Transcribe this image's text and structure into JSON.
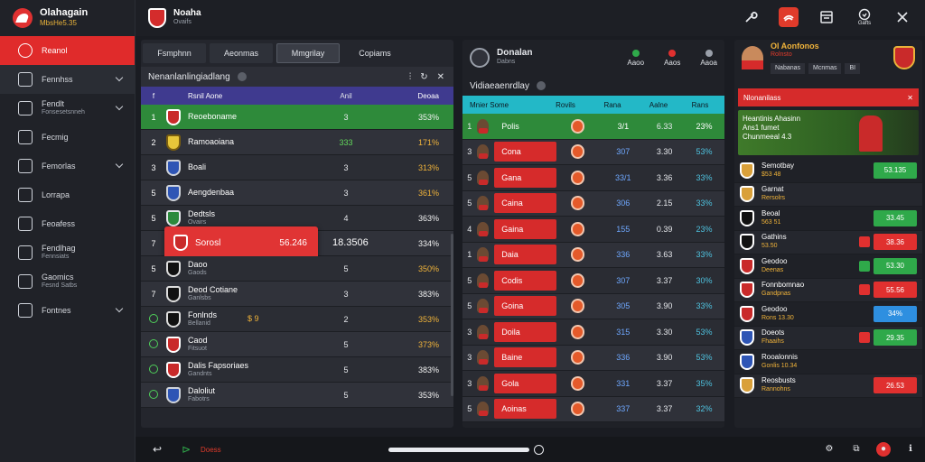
{
  "brand": {
    "title": "Olahagain",
    "subtitle": "MbsHe5.35"
  },
  "sidebar": {
    "items": [
      {
        "label": "Reanol",
        "sub": "",
        "active": true
      },
      {
        "label": "Fennhss",
        "sub": "",
        "caret": true,
        "alt": true
      },
      {
        "label": "Fendlt",
        "sub": "Fonsesetsnneh",
        "caret": true
      },
      {
        "label": "Fecmig",
        "sub": ""
      },
      {
        "label": "Femorlas",
        "sub": "",
        "caret": true
      },
      {
        "label": "Lorrapa",
        "sub": ""
      },
      {
        "label": "Feoafess",
        "sub": ""
      },
      {
        "label": "Fendlhag",
        "sub": "Fennsiats"
      },
      {
        "label": "Gaomics",
        "sub": "Fesnd Satbs"
      },
      {
        "label": "Fontnes",
        "sub": "",
        "caret": true
      }
    ]
  },
  "topbar": {
    "club_name": "Noaha",
    "club_sub": "Ovaifs",
    "actions": [
      "wrench-icon",
      "flag-icon",
      "window-icon",
      "clock-icon",
      "close-icon"
    ],
    "action_sub": "Gafts"
  },
  "left_panel": {
    "tabs": [
      "Fsmphnn",
      "Aeonmas",
      "Mmgrilay",
      "Copiams"
    ],
    "title": "Nenanlanlingiadlang",
    "columns": {
      "rank": "f",
      "name": "Rsnil Aone",
      "val": "Anil",
      "pct": "Deoaa"
    },
    "rows": [
      {
        "rank": "1",
        "name": "Reoeboname",
        "sub": "",
        "val": "3",
        "pct": "353%",
        "crest": "red",
        "style": "green",
        "pct_white": true
      },
      {
        "rank": "2",
        "name": "Ramoaoiana",
        "sub": "",
        "val": "333",
        "pct": "171%",
        "crest": "yel",
        "val_green": true
      },
      {
        "rank": "3",
        "name": "Boali",
        "sub": "",
        "val": "3",
        "pct": "313%",
        "crest": "blue"
      },
      {
        "rank": "5",
        "name": "Aengdenbaa",
        "sub": "",
        "val": "3",
        "pct": "361%",
        "crest": "blue"
      },
      {
        "rank": "5",
        "name": "Dedtsls",
        "sub": "Ovairs",
        "val": "4",
        "pct": "363%",
        "crest": "grn",
        "pct_white": true
      },
      {
        "rank": "7",
        "name": "",
        "sub": "",
        "val": "",
        "pct": "334%",
        "crest": "red",
        "pct_white": true,
        "highlight": {
          "name": "Sorosl",
          "value": "56.246"
        },
        "big_value": "18.3506"
      },
      {
        "rank": "5",
        "name": "Daoo",
        "sub": "Gaods",
        "val": "5",
        "pct": "350%",
        "crest": "dark"
      },
      {
        "rank": "7",
        "name": "Deod Cotiane",
        "sub": "Ganlsbs",
        "val": "3",
        "pct": "383%",
        "crest": "dark",
        "pct_white": true
      },
      {
        "rank": "",
        "name": "Fonlnds",
        "sub": "Bellanid",
        "val": "2",
        "pct": "353%",
        "crest": "dark",
        "extra": "$ 9"
      },
      {
        "rank": "",
        "name": "Caod",
        "sub": "Fitsuot",
        "val": "5",
        "pct": "373%",
        "crest": "red"
      },
      {
        "rank": "",
        "name": "Dalis Fapsoriaes",
        "sub": "Gandnts",
        "val": "5",
        "pct": "383%",
        "crest": "red",
        "pct_white": true
      },
      {
        "rank": "",
        "name": "Daloliut",
        "sub": "Fabotrs",
        "val": "5",
        "pct": "353%",
        "crest": "blue",
        "pct_white": true
      }
    ]
  },
  "mid_panel": {
    "title": "Donalan",
    "subtitle": "Dabns",
    "stats": [
      {
        "label": "Aaoo"
      },
      {
        "label": "Aaos"
      },
      {
        "label": "Aaoa"
      }
    ],
    "section": "Vidiaeaenrdlay",
    "columns": [
      "Mnier Some",
      "Rovils",
      "Rana",
      "Aalne",
      "Rans"
    ],
    "rows": [
      {
        "rank": "1",
        "name": "Polis",
        "val": "3/1",
        "val2": "6.33",
        "pct": "23%",
        "style": "green"
      },
      {
        "rank": "3",
        "name": "Cona",
        "val": "307",
        "val2": "3.30",
        "pct": "53%"
      },
      {
        "rank": "5",
        "name": "Gana",
        "val": "33/1",
        "val2": "3.36",
        "pct": "33%"
      },
      {
        "rank": "5",
        "name": "Caina",
        "val": "306",
        "val2": "2.15",
        "pct": "33%"
      },
      {
        "rank": "4",
        "name": "Gaina",
        "val": "155",
        "val2": "0.39",
        "pct": "23%"
      },
      {
        "rank": "1",
        "name": "Daia",
        "val": "336",
        "val2": "3.63",
        "pct": "33%"
      },
      {
        "rank": "5",
        "name": "Codis",
        "val": "307",
        "val2": "3.37",
        "pct": "30%"
      },
      {
        "rank": "5",
        "name": "Goina",
        "val": "305",
        "val2": "3.90",
        "pct": "33%"
      },
      {
        "rank": "3",
        "name": "Doila",
        "val": "315",
        "val2": "3.30",
        "pct": "53%"
      },
      {
        "rank": "3",
        "name": "Baine",
        "val": "336",
        "val2": "3.90",
        "pct": "53%"
      },
      {
        "rank": "3",
        "name": "Gola",
        "val": "331",
        "val2": "3.37",
        "pct": "35%"
      },
      {
        "rank": "5",
        "name": "Aoinas",
        "val": "337",
        "val2": "3.37",
        "pct": "32%"
      }
    ]
  },
  "right_panel": {
    "title": "Ol Aonfonos",
    "subtitle": "Rolnsto",
    "stats": [
      "Nabanas",
      "Mcnmas",
      "BI"
    ],
    "bar_label": "Nlonanilass",
    "hero_text": [
      "Heantinis Ahasinn",
      "Ans1 fumet",
      "Chunmeeal 4.3"
    ],
    "rows": [
      {
        "name": "Semotbay",
        "sub": "$53 48",
        "pill": "53.135",
        "pill_color": "g",
        "crest": ""
      },
      {
        "name": "Garnat",
        "sub": "Rersolrs",
        "pill": "",
        "pill_color": "none",
        "crest": ""
      },
      {
        "name": "Beoal",
        "sub": "563 51",
        "pill": "33.45",
        "pill_color": "g",
        "crest": "dark"
      },
      {
        "name": "Gathins",
        "sub": "53.50",
        "pill": "38.36",
        "pill_color": "r",
        "crest": "dark",
        "mini": "#e0302f"
      },
      {
        "name": "Geodoo",
        "sub": "Deenas",
        "pill": "53.30",
        "pill_color": "g",
        "crest": "red",
        "mini": "#2fa94a"
      },
      {
        "name": "Fonnbomnao",
        "sub": "Gandpnas",
        "pill": "55.56",
        "pill_color": "r",
        "crest": "red",
        "mini": "#e0302f"
      },
      {
        "name": "Geodoo",
        "sub": "Rons 13.30",
        "pill": "34%",
        "pill_color": "b",
        "crest": "red"
      },
      {
        "name": "Doeots",
        "sub": "Fhaaihs",
        "pill": "29.35",
        "pill_color": "g",
        "crest": "blue",
        "mini": "#e0302f"
      },
      {
        "name": "Rooalonnis",
        "sub": "Gonlis 10.34",
        "pill": "",
        "pill_color": "none",
        "crest": "blue"
      },
      {
        "name": "Reosbusts",
        "sub": "Rannohns",
        "pill": "26.53",
        "pill_color": "r",
        "crest": ""
      }
    ]
  },
  "footer": {
    "status": "Doess"
  }
}
